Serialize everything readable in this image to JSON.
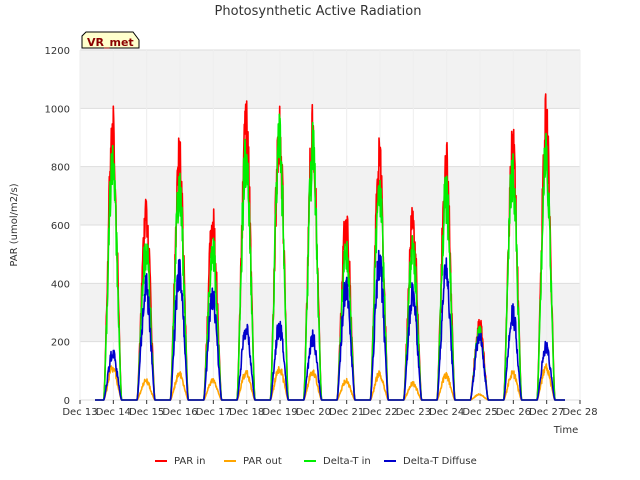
{
  "chart_data": {
    "type": "line",
    "title": "Photosynthetic Active Radiation",
    "xlabel": "Time",
    "ylabel": "PAR (umol/m2/s)",
    "badge": "VR_met",
    "xlim": [
      13,
      28
    ],
    "ylim": [
      0,
      1200
    ],
    "xticks": [
      13,
      14,
      15,
      16,
      17,
      18,
      19,
      20,
      21,
      22,
      23,
      24,
      25,
      26,
      27,
      28
    ],
    "xtick_labels": [
      "Dec 13",
      "Dec 14",
      "Dec 15",
      "Dec 16",
      "Dec 17",
      "Dec 18",
      "Dec 19",
      "Dec 20",
      "Dec 21",
      "Dec 22",
      "Dec 23",
      "Dec 24",
      "Dec 25",
      "Dec 26",
      "Dec 27",
      "Dec 28"
    ],
    "yticks": [
      0,
      200,
      400,
      600,
      800,
      1000,
      1200
    ],
    "ytick_labels": [
      "0",
      "200",
      "400",
      "600",
      "800",
      "1000",
      "1200"
    ],
    "grid": true,
    "legend_position": "bottom",
    "days": [
      14,
      15,
      16,
      17,
      18,
      19,
      20,
      21,
      22,
      23,
      24,
      25,
      26,
      27
    ],
    "series": [
      {
        "name": "PAR in",
        "color": "#ff0000",
        "peaks": [
          1030,
          700,
          910,
          680,
          1050,
          1055,
          1040,
          680,
          905,
          690,
          910,
          295,
          980,
          1060
        ]
      },
      {
        "name": "PAR out",
        "color": "#ffa500",
        "peaks": [
          125,
          75,
          100,
          75,
          105,
          125,
          110,
          75,
          100,
          65,
          95,
          22,
          105,
          125
        ]
      },
      {
        "name": "Delta-T in",
        "color": "#00ee00",
        "peaks": [
          920,
          580,
          810,
          585,
          975,
          980,
          960,
          580,
          830,
          580,
          810,
          265,
          890,
          950
        ]
      },
      {
        "name": "Delta-T Diffuse",
        "color": "#0000cc",
        "peaks": [
          180,
          440,
          490,
          390,
          280,
          285,
          240,
          440,
          530,
          410,
          490,
          245,
          340,
          210
        ]
      }
    ]
  }
}
